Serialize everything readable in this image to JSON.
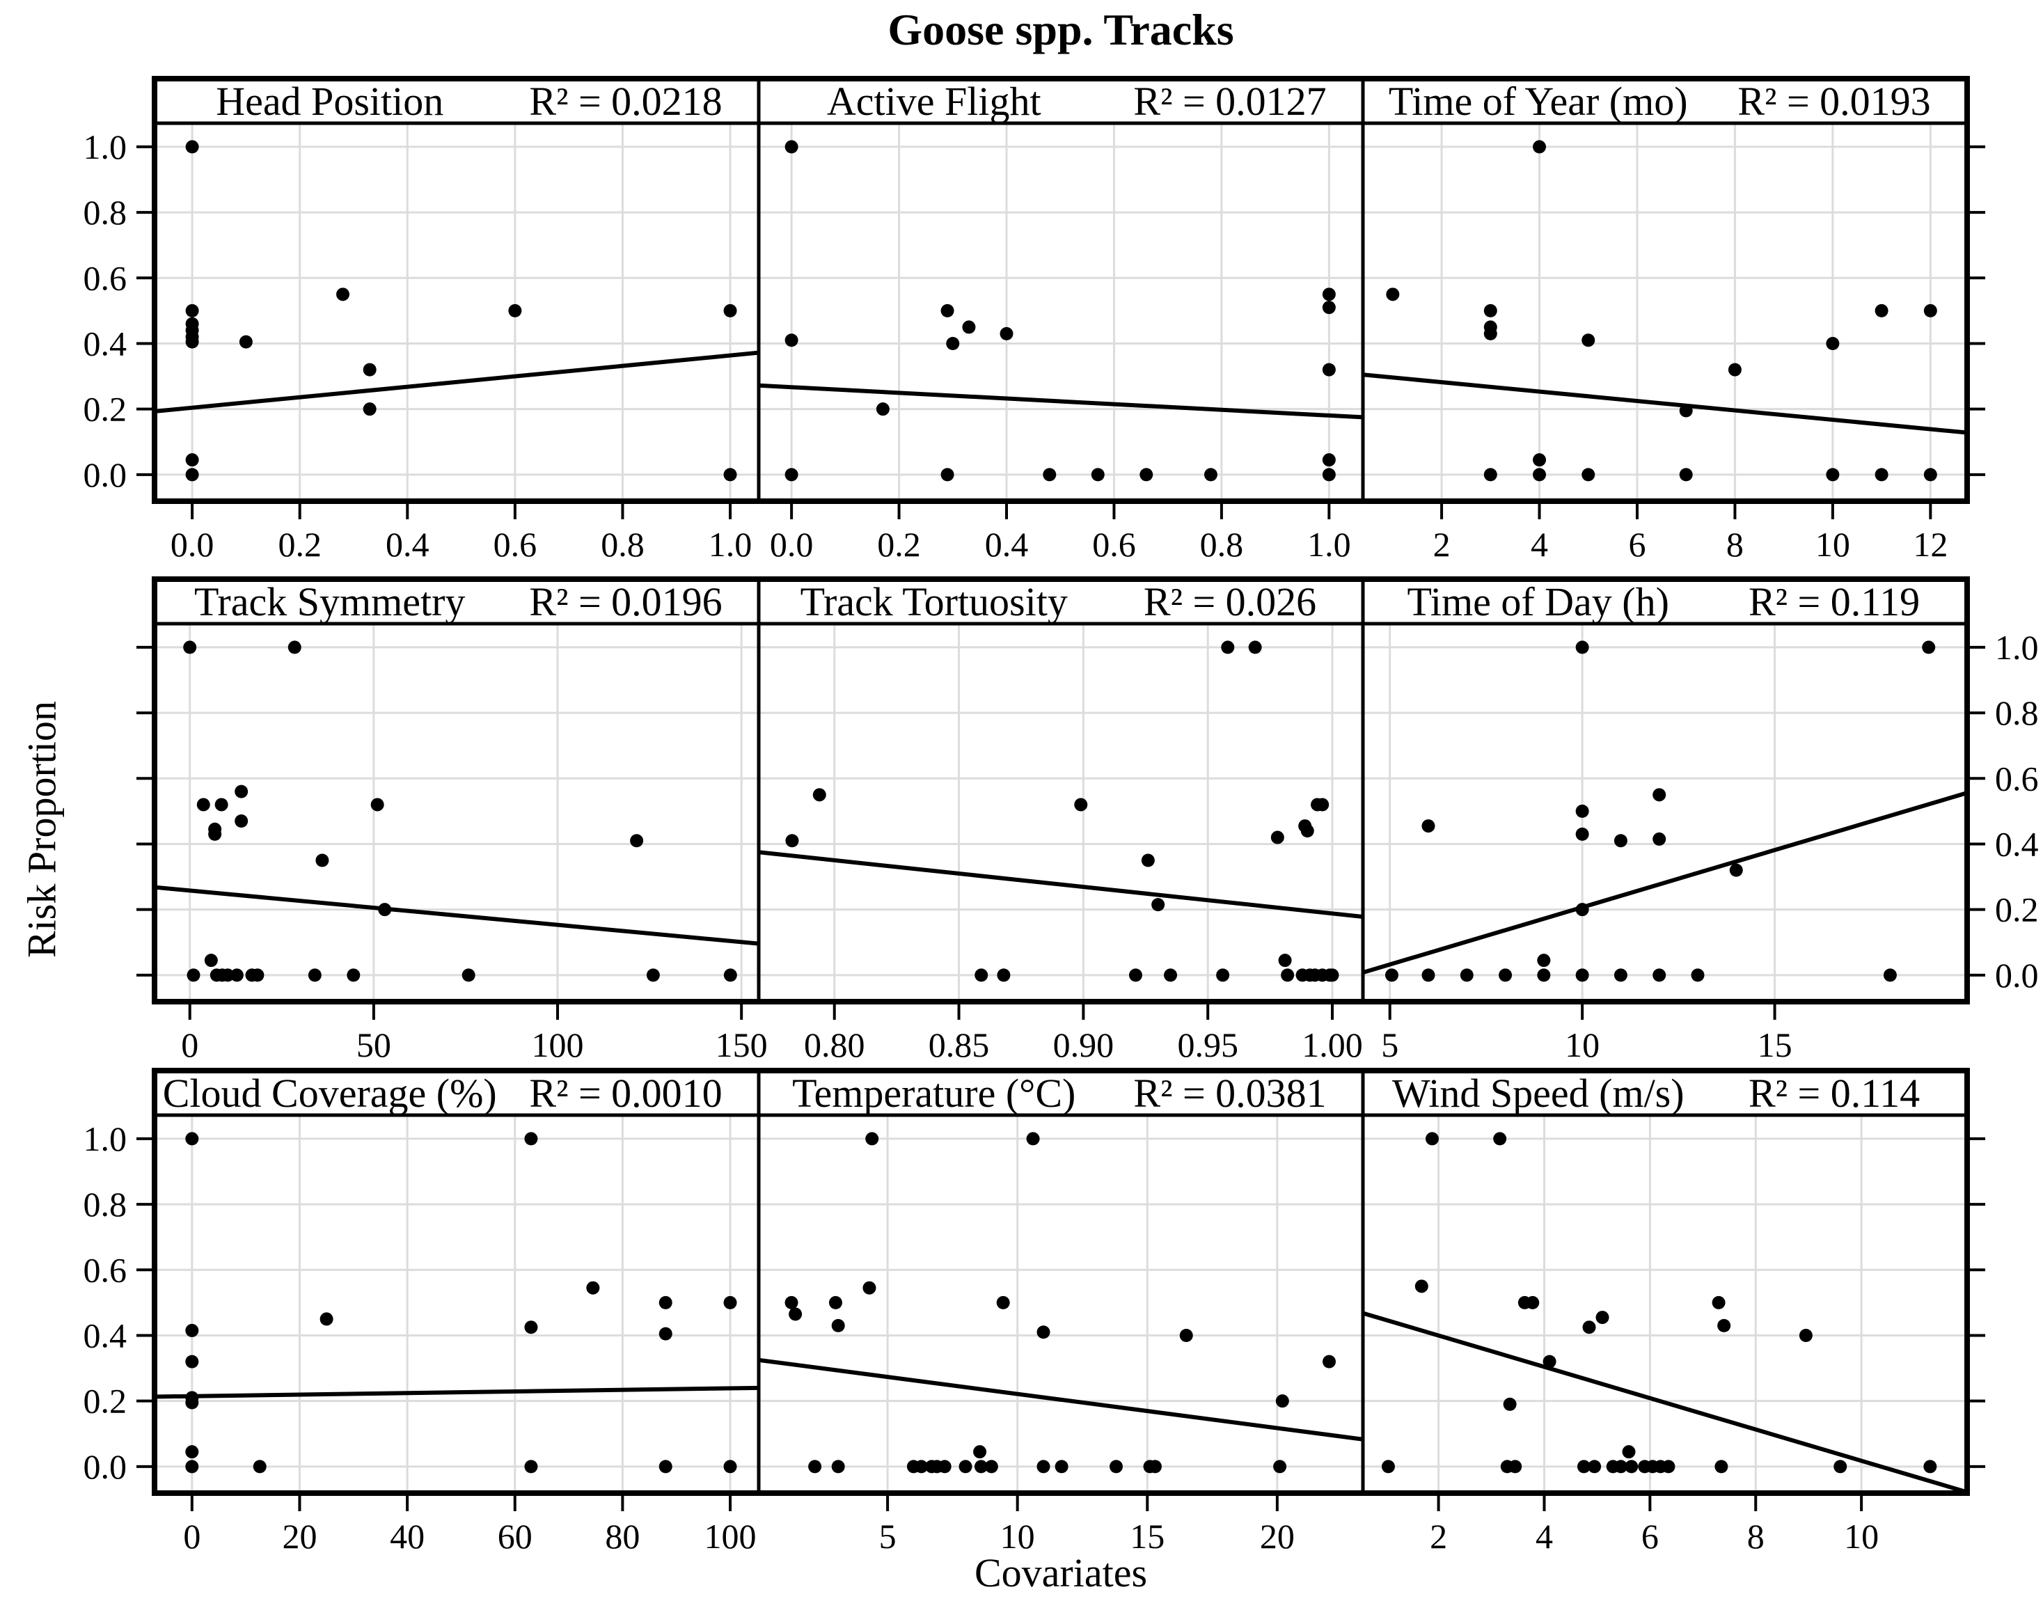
{
  "chart_data": {
    "type": "scatter",
    "layout": "3x3-lattice-grid",
    "title": "Goose spp. Tracks",
    "xlabel": "Covariates",
    "ylabel": "Risk Proportion",
    "grid": true,
    "ylim": [
      -0.081,
      1.072
    ],
    "yticks": [
      0.0,
      0.2,
      0.4,
      0.6,
      0.8,
      1.0
    ],
    "ytick_labels": [
      "0.0",
      "0.2",
      "0.4",
      "0.6",
      "0.8",
      "1.0"
    ],
    "y_label_side_by_row": [
      "left",
      "right",
      "left"
    ],
    "panels": [
      {
        "title": "Head Position",
        "r2": 0.0218,
        "r2_label": "R² = 0.0218",
        "row": 0,
        "col": 0,
        "xlim": [
          -0.07,
          1.053
        ],
        "xticks": [
          0.0,
          0.2,
          0.4,
          0.6,
          0.8,
          1.0
        ],
        "xtick_labels": [
          "0.0",
          "0.2",
          "0.4",
          "0.6",
          "0.8",
          "1.0"
        ],
        "points": [
          [
            0,
            1.0
          ],
          [
            0,
            0.5
          ],
          [
            0,
            0.46
          ],
          [
            0,
            0.44
          ],
          [
            0,
            0.42
          ],
          [
            0,
            0.405
          ],
          [
            0.1,
            0.405
          ],
          [
            0.28,
            0.55
          ],
          [
            0.33,
            0.32
          ],
          [
            0.33,
            0.2
          ],
          [
            0.6,
            0.5
          ],
          [
            1.0,
            0.5
          ],
          [
            0,
            0.045
          ],
          [
            0,
            0.0
          ],
          [
            1.0,
            0.0
          ]
        ],
        "trend": [
          [
            -0.07,
            0.193
          ],
          [
            1.053,
            0.372
          ]
        ]
      },
      {
        "title": "Active Flight",
        "r2": 0.0127,
        "r2_label": "R² = 0.0127",
        "row": 0,
        "col": 1,
        "xlim": [
          -0.061,
          1.063
        ],
        "xticks": [
          0.0,
          0.2,
          0.4,
          0.6,
          0.8,
          1.0
        ],
        "xtick_labels": [
          "0.0",
          "0.2",
          "0.4",
          "0.6",
          "0.8",
          "1.0"
        ],
        "points": [
          [
            0,
            1.0
          ],
          [
            0,
            0.41
          ],
          [
            0.17,
            0.2
          ],
          [
            0.29,
            0.5
          ],
          [
            0.3,
            0.4
          ],
          [
            0.33,
            0.45
          ],
          [
            0.4,
            0.43
          ],
          [
            1.0,
            0.55
          ],
          [
            1.0,
            0.51
          ],
          [
            1.0,
            0.32
          ],
          [
            0,
            0.0
          ],
          [
            0.29,
            0.0
          ],
          [
            0.48,
            0.0
          ],
          [
            0.57,
            0.0
          ],
          [
            0.66,
            0.0
          ],
          [
            0.78,
            0.0
          ],
          [
            1.0,
            0.045
          ],
          [
            1.0,
            0.0
          ]
        ],
        "trend": [
          [
            -0.061,
            0.272
          ],
          [
            1.063,
            0.175
          ]
        ]
      },
      {
        "title": "Time of Year (mo)",
        "r2": 0.0193,
        "r2_label": "R² = 0.0193",
        "row": 0,
        "col": 2,
        "xlim": [
          0.39,
          12.75
        ],
        "xticks": [
          2,
          4,
          6,
          8,
          10,
          12
        ],
        "xtick_labels": [
          "2",
          "4",
          "6",
          "8",
          "10",
          "12"
        ],
        "points": [
          [
            1,
            0.55
          ],
          [
            3,
            0.5
          ],
          [
            3,
            0.45
          ],
          [
            3,
            0.43
          ],
          [
            4,
            1.0
          ],
          [
            5,
            0.41
          ],
          [
            7,
            0.195
          ],
          [
            8,
            0.32
          ],
          [
            10,
            0.4
          ],
          [
            11,
            0.5
          ],
          [
            12,
            0.5
          ],
          [
            3,
            0.0
          ],
          [
            4,
            0.045
          ],
          [
            4,
            0.0
          ],
          [
            5,
            0.0
          ],
          [
            7,
            0.0
          ],
          [
            10,
            0.0
          ],
          [
            11,
            0.0
          ],
          [
            12,
            0.0
          ]
        ],
        "trend": [
          [
            0.39,
            0.305
          ],
          [
            12.75,
            0.128
          ]
        ]
      },
      {
        "title": "Track Symmetry",
        "r2": 0.0196,
        "r2_label": "R² = 0.0196",
        "row": 1,
        "col": 0,
        "xlim": [
          -9.6,
          154.7
        ],
        "xticks": [
          0,
          50,
          100,
          150
        ],
        "xtick_labels": [
          "0",
          "50",
          "100",
          "150"
        ],
        "points": [
          [
            0,
            1.0
          ],
          [
            28.5,
            1.0
          ],
          [
            14,
            0.56
          ],
          [
            3.7,
            0.52
          ],
          [
            8.6,
            0.52
          ],
          [
            14,
            0.47
          ],
          [
            6.8,
            0.445
          ],
          [
            6.8,
            0.43
          ],
          [
            51,
            0.52
          ],
          [
            121.5,
            0.41
          ],
          [
            36,
            0.35
          ],
          [
            53,
            0.2
          ],
          [
            1,
            0.0
          ],
          [
            5.8,
            0.045
          ],
          [
            7.3,
            0.0
          ],
          [
            8.8,
            0.0
          ],
          [
            10.3,
            0.0
          ],
          [
            12.8,
            0.0
          ],
          [
            16.9,
            0.0
          ],
          [
            18.4,
            0.0
          ],
          [
            34,
            0.0
          ],
          [
            44.5,
            0.0
          ],
          [
            75.8,
            0.0
          ],
          [
            126,
            0.0
          ],
          [
            147,
            0.0
          ]
        ],
        "trend": [
          [
            -9.6,
            0.268
          ],
          [
            154.7,
            0.096
          ]
        ]
      },
      {
        "title": "Track Tortuosity",
        "r2": 0.026,
        "r2_label": "R² = 0.026",
        "row": 1,
        "col": 1,
        "xlim": [
          0.7696,
          1.0123
        ],
        "xticks": [
          0.8,
          0.85,
          0.9,
          0.95,
          1.0
        ],
        "xtick_labels": [
          "0.80",
          "0.85",
          "0.90",
          "0.95",
          "1.00"
        ],
        "points": [
          [
            0.958,
            1.0
          ],
          [
            0.969,
            1.0
          ],
          [
            0.794,
            0.55
          ],
          [
            0.783,
            0.41
          ],
          [
            0.899,
            0.52
          ],
          [
            0.926,
            0.35
          ],
          [
            0.93,
            0.215
          ],
          [
            0.978,
            0.42
          ],
          [
            0.989,
            0.455
          ],
          [
            0.99,
            0.44
          ],
          [
            0.994,
            0.52
          ],
          [
            0.996,
            0.52
          ],
          [
            0.859,
            0.0
          ],
          [
            0.868,
            0.0
          ],
          [
            0.921,
            0.0
          ],
          [
            0.935,
            0.0
          ],
          [
            0.956,
            0.0
          ],
          [
            0.981,
            0.045
          ],
          [
            0.982,
            0.0
          ],
          [
            0.988,
            0.0
          ],
          [
            0.991,
            0.0
          ],
          [
            0.993,
            0.0
          ],
          [
            0.996,
            0.0
          ],
          [
            0.999,
            0.0
          ],
          [
            1.0,
            0.0
          ]
        ],
        "trend": [
          [
            0.7696,
            0.375
          ],
          [
            1.0123,
            0.178
          ]
        ]
      },
      {
        "title": "Time of Day (h)",
        "r2": 0.119,
        "r2_label": "R² = 0.119",
        "row": 1,
        "col": 2,
        "xlim": [
          4.3,
          20.0
        ],
        "xticks": [
          5,
          10,
          15
        ],
        "xtick_labels": [
          "5",
          "10",
          "15"
        ],
        "points": [
          [
            10,
            1.0
          ],
          [
            19,
            1.0
          ],
          [
            6,
            0.455
          ],
          [
            10,
            0.5
          ],
          [
            10,
            0.43
          ],
          [
            11,
            0.41
          ],
          [
            12,
            0.55
          ],
          [
            12,
            0.415
          ],
          [
            14,
            0.32
          ],
          [
            10,
            0.2
          ],
          [
            5.05,
            0.0
          ],
          [
            6,
            0.0
          ],
          [
            7,
            0.0
          ],
          [
            8,
            0.0
          ],
          [
            9,
            0.045
          ],
          [
            9,
            0.0
          ],
          [
            10,
            0.0
          ],
          [
            11,
            0.0
          ],
          [
            12,
            0.0
          ],
          [
            13,
            0.0
          ],
          [
            18,
            0.0
          ]
        ],
        "trend": [
          [
            4.3,
            0.008
          ],
          [
            20.0,
            0.556
          ]
        ]
      },
      {
        "title": "Cloud Coverage (%)",
        "r2": 0.001,
        "r2_label": "R² = 0.0010",
        "row": 2,
        "col": 0,
        "xlim": [
          -6.96,
          105.3
        ],
        "xticks": [
          0,
          20,
          40,
          60,
          80,
          100
        ],
        "xtick_labels": [
          "0",
          "20",
          "40",
          "60",
          "80",
          "100"
        ],
        "points": [
          [
            0,
            1.0
          ],
          [
            63,
            1.0
          ],
          [
            0,
            0.415
          ],
          [
            0,
            0.32
          ],
          [
            0,
            0.21
          ],
          [
            0,
            0.195
          ],
          [
            25,
            0.45
          ],
          [
            63,
            0.425
          ],
          [
            74.5,
            0.545
          ],
          [
            88,
            0.5
          ],
          [
            88,
            0.405
          ],
          [
            100,
            0.5
          ],
          [
            0,
            0.045
          ],
          [
            0,
            0.0
          ],
          [
            12.6,
            0.0
          ],
          [
            63,
            0.0
          ],
          [
            88,
            0.0
          ],
          [
            100,
            0.0
          ]
        ],
        "trend": [
          [
            -6.96,
            0.213
          ],
          [
            105.3,
            0.24
          ]
        ]
      },
      {
        "title": "Temperature (°C)",
        "r2": 0.0381,
        "r2_label": "R² = 0.0381",
        "row": 2,
        "col": 1,
        "xlim": [
          0.04,
          23.3
        ],
        "xticks": [
          5,
          10,
          15,
          20
        ],
        "xtick_labels": [
          "5",
          "10",
          "15",
          "20"
        ],
        "points": [
          [
            4.4,
            1.0
          ],
          [
            10.6,
            1.0
          ],
          [
            1.3,
            0.5
          ],
          [
            1.45,
            0.465
          ],
          [
            3.0,
            0.5
          ],
          [
            3.1,
            0.43
          ],
          [
            4.3,
            0.545
          ],
          [
            9.45,
            0.5
          ],
          [
            11.0,
            0.41
          ],
          [
            16.5,
            0.4
          ],
          [
            20.2,
            0.2
          ],
          [
            22.0,
            0.32
          ],
          [
            2.2,
            0.0
          ],
          [
            3.1,
            0.0
          ],
          [
            6.0,
            0.0
          ],
          [
            6.3,
            0.0
          ],
          [
            6.7,
            0.0
          ],
          [
            6.9,
            0.0
          ],
          [
            7.2,
            0.0
          ],
          [
            8.0,
            0.0
          ],
          [
            8.55,
            0.045
          ],
          [
            8.6,
            0.0
          ],
          [
            9.0,
            0.0
          ],
          [
            11.0,
            0.0
          ],
          [
            11.7,
            0.0
          ],
          [
            13.8,
            0.0
          ],
          [
            15.1,
            0.0
          ],
          [
            15.3,
            0.0
          ],
          [
            20.1,
            0.0
          ]
        ],
        "trend": [
          [
            0.04,
            0.325
          ],
          [
            23.3,
            0.083
          ]
        ]
      },
      {
        "title": "Wind Speed (m/s)",
        "r2": 0.114,
        "r2_label": "R² = 0.114",
        "row": 2,
        "col": 2,
        "xlim": [
          0.57,
          12.0
        ],
        "xticks": [
          2,
          4,
          6,
          8,
          10
        ],
        "xtick_labels": [
          "2",
          "4",
          "6",
          "8",
          "10"
        ],
        "points": [
          [
            1.88,
            1.0
          ],
          [
            3.16,
            1.0
          ],
          [
            1.68,
            0.55
          ],
          [
            3.63,
            0.5
          ],
          [
            3.78,
            0.5
          ],
          [
            5.1,
            0.455
          ],
          [
            4.85,
            0.425
          ],
          [
            4.1,
            0.32
          ],
          [
            3.35,
            0.19
          ],
          [
            7.3,
            0.5
          ],
          [
            7.4,
            0.43
          ],
          [
            8.95,
            0.4
          ],
          [
            1.05,
            0.0
          ],
          [
            3.3,
            0.0
          ],
          [
            3.45,
            0.0
          ],
          [
            4.75,
            0.0
          ],
          [
            4.95,
            0.0
          ],
          [
            5.3,
            0.0
          ],
          [
            5.45,
            0.0
          ],
          [
            5.6,
            0.045
          ],
          [
            5.65,
            0.0
          ],
          [
            5.9,
            0.0
          ],
          [
            6.05,
            0.0
          ],
          [
            6.2,
            0.0
          ],
          [
            6.35,
            0.0
          ],
          [
            7.35,
            0.0
          ],
          [
            9.6,
            0.0
          ],
          [
            11.3,
            0.0
          ]
        ],
        "trend": [
          [
            0.57,
            0.468
          ],
          [
            12.0,
            -0.078
          ]
        ]
      }
    ]
  },
  "colors": {
    "foreground": "#000000",
    "background": "#ffffff",
    "gridline": "#dcdcdc"
  }
}
